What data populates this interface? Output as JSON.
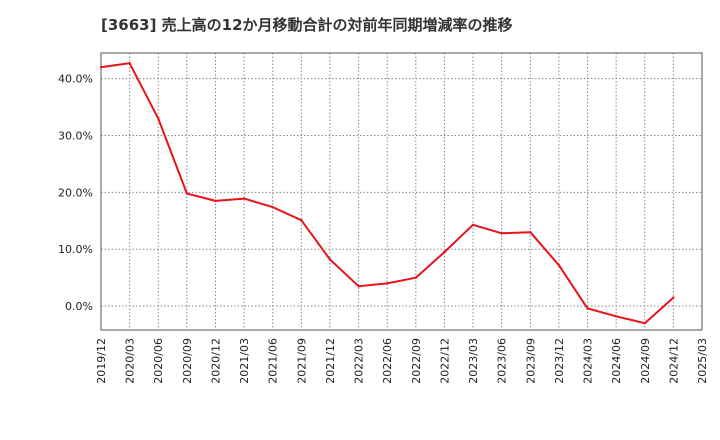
{
  "chart_data": {
    "type": "line",
    "title": "[3663]  売上高の12か月移動合計の対前年同期増減率の推移",
    "xlabel": "",
    "ylabel": "",
    "ylim": [
      -4.2,
      44.5
    ],
    "y_ticks": [
      0,
      10,
      20,
      30,
      40
    ],
    "y_tick_labels": [
      "0.0%",
      "10.0%",
      "20.0%",
      "30.0%",
      "40.0%"
    ],
    "x": [
      "2019/12",
      "2020/03",
      "2020/06",
      "2020/09",
      "2020/12",
      "2021/03",
      "2021/06",
      "2021/09",
      "2021/12",
      "2022/03",
      "2022/06",
      "2022/09",
      "2022/12",
      "2023/03",
      "2023/06",
      "2023/09",
      "2023/12",
      "2024/03",
      "2024/06",
      "2024/09",
      "2024/12",
      "2025/03"
    ],
    "series": [
      {
        "name": "対前年同期増減率",
        "color": "#e8141b",
        "values": [
          42.0,
          42.7,
          33.0,
          19.8,
          18.5,
          18.9,
          17.4,
          15.1,
          8.2,
          3.5,
          4.0,
          5.0,
          9.5,
          14.3,
          12.8,
          13.0,
          7.2,
          -0.4,
          -1.8,
          -3.0,
          1.5,
          null
        ]
      }
    ],
    "grid": true,
    "legend": "none"
  }
}
